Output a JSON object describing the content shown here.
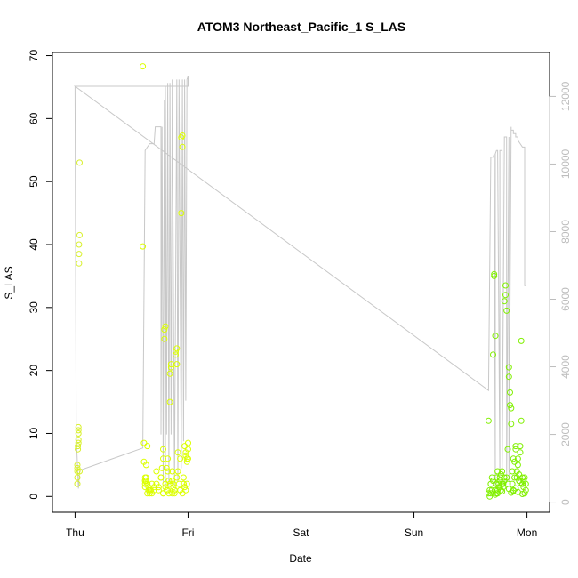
{
  "chart_data": {
    "type": "scatter",
    "title": "ATOM3 Northeast_Pacific_1 S_LAS",
    "xlabel": "Date",
    "ylabel": "S_LAS",
    "x_ticks": [
      {
        "label": "Thu",
        "value": 0
      },
      {
        "label": "Fri",
        "value": 1
      },
      {
        "label": "Sat",
        "value": 2
      },
      {
        "label": "Sun",
        "value": 3
      },
      {
        "label": "Mon",
        "value": 4
      }
    ],
    "xlim": [
      -0.2,
      4.2
    ],
    "ylim": [
      -2.5,
      70.5
    ],
    "y_ticks": [
      0,
      10,
      20,
      30,
      40,
      50,
      60,
      70
    ],
    "y2_ticks": [
      0,
      2000,
      4000,
      6000,
      8000,
      10000,
      12000
    ],
    "y2lim": [
      -300,
      13300
    ],
    "grid": false,
    "colors": {
      "thu_points": "#d8f02a",
      "fri_points": "#dcff00",
      "mon_points": "#80f000",
      "altitude_line": "#c8c8c8",
      "axis": "#000000",
      "right_axis": "#bdbdbd"
    },
    "series": [
      {
        "values_x": [
          0.02,
          0.02,
          0.02,
          0.02,
          0.02,
          0.025,
          0.025,
          0.03,
          0.03,
          0.03,
          0.03,
          0.03,
          0.035,
          0.035,
          0.035,
          0.04,
          0.04,
          0.04
        ],
        "values_y": [
          2,
          3,
          4,
          4.5,
          5,
          7.5,
          8,
          8.5,
          9,
          10,
          10.5,
          11,
          37,
          38.5,
          40,
          41.5,
          53,
          4
        ]
      },
      {
        "values_x": [
          0.6,
          0.6,
          0.61,
          0.61,
          0.62,
          0.62,
          0.62,
          0.63,
          0.63,
          0.63,
          0.64,
          0.64,
          0.65,
          0.65,
          0.66,
          0.67,
          0.68,
          0.7,
          0.72,
          0.74,
          0.76,
          0.77,
          0.78,
          0.78,
          0.78,
          0.79,
          0.79,
          0.8,
          0.8,
          0.81,
          0.81,
          0.82,
          0.82,
          0.83,
          0.83,
          0.84,
          0.84,
          0.85,
          0.85,
          0.86,
          0.86,
          0.87,
          0.87,
          0.88,
          0.88,
          0.89,
          0.89,
          0.9,
          0.9,
          0.91,
          0.91,
          0.92,
          0.93,
          0.93,
          0.94,
          0.94,
          0.95,
          0.95,
          0.96,
          0.96,
          0.97,
          0.97,
          0.98,
          0.98,
          0.99,
          0.99,
          1.0,
          1.0,
          1.0,
          0.99,
          0.98,
          0.97,
          0.96,
          0.95,
          0.93,
          0.9,
          0.88,
          0.86,
          0.84,
          0.82,
          0.8,
          0.78,
          0.76,
          0.74,
          0.72,
          0.7,
          0.68,
          0.66,
          0.64,
          0.62,
          0.62
        ],
        "values_y": [
          68.3,
          39.7,
          8.5,
          5.5,
          2.5,
          3,
          2,
          5,
          2.5,
          3,
          8,
          2,
          1.5,
          1,
          0.5,
          1,
          0.5,
          1.5,
          2,
          1,
          3,
          4.5,
          0.5,
          7.5,
          6,
          25,
          26.5,
          27,
          2,
          4.5,
          1,
          4,
          6,
          0.5,
          2.5,
          15,
          19.5,
          20.5,
          21,
          4,
          2.5,
          1.5,
          2,
          1,
          0.5,
          23,
          22.5,
          21,
          23.5,
          7,
          4,
          2,
          1,
          6,
          45,
          57,
          57.3,
          55.5,
          3,
          2,
          1.5,
          8,
          7,
          6.5,
          6,
          5.5,
          8.5,
          7.5,
          6,
          2,
          1,
          1.5,
          2,
          0.5,
          1,
          3,
          1,
          0.5,
          2,
          1,
          1.5,
          0.5,
          3,
          1.5,
          4,
          1,
          2,
          1,
          0.5,
          1.5,
          2.5
        ]
      },
      {
        "values_x": [
          3.66,
          3.66,
          3.67,
          3.67,
          3.68,
          3.68,
          3.69,
          3.69,
          3.7,
          3.7,
          3.71,
          3.71,
          3.72,
          3.72,
          3.73,
          3.73,
          3.74,
          3.74,
          3.75,
          3.75,
          3.76,
          3.76,
          3.77,
          3.77,
          3.78,
          3.78,
          3.79,
          3.79,
          3.8,
          3.8,
          3.81,
          3.81,
          3.82,
          3.82,
          3.83,
          3.83,
          3.84,
          3.84,
          3.85,
          3.85,
          3.86,
          3.86,
          3.87,
          3.87,
          3.88,
          3.88,
          3.89,
          3.89,
          3.9,
          3.9,
          3.91,
          3.91,
          3.92,
          3.92,
          3.93,
          3.93,
          3.94,
          3.94,
          3.95,
          3.95,
          3.96,
          3.96,
          3.97,
          3.97,
          3.98,
          3.98,
          3.99,
          3.99,
          3.72,
          3.73,
          3.74,
          3.76,
          3.78,
          3.8,
          3.84,
          3.86,
          3.88,
          3.9,
          3.92,
          3.94,
          3.96
        ],
        "values_y": [
          12,
          0.5,
          1,
          0,
          2,
          0.5,
          1,
          3,
          2.5,
          22.5,
          35.3,
          35,
          25.5,
          1,
          2,
          3,
          4,
          0.5,
          1.5,
          2,
          2.5,
          3,
          1,
          3.5,
          2,
          4,
          2,
          1.5,
          3,
          31,
          33.5,
          32,
          29.5,
          3,
          2,
          7.5,
          20.5,
          19,
          16.5,
          14.5,
          14,
          11.5,
          4,
          2,
          1,
          6,
          5.5,
          3,
          8,
          7.5,
          3,
          4,
          5,
          6,
          2.5,
          3.5,
          7,
          8,
          12,
          24.7,
          2,
          3,
          1.5,
          2.5,
          3,
          0.5,
          1,
          2,
          0.3,
          0.5,
          1,
          1.5,
          0.8,
          2.5,
          1.2,
          0.6,
          0.9,
          1.3,
          0.7,
          2.2,
          0.4
        ]
      },
      {
        "line": true,
        "values_x": [
          0.0,
          0.0,
          0.01,
          0.03,
          0.04,
          0.05,
          0.6,
          0.62,
          0.64,
          0.66,
          0.68,
          0.7,
          0.71,
          0.72,
          0.74,
          0.76,
          0.76,
          0.77,
          0.78,
          0.79,
          0.8,
          0.8,
          0.81,
          0.82,
          0.83,
          0.84,
          0.85,
          0.86,
          0.88,
          0.9,
          0.91,
          0.92,
          0.94,
          0.95,
          0.96,
          0.97,
          0.98,
          0.99,
          1.0,
          1.0,
          1.0,
          0.99,
          0.98,
          0.96,
          0.9,
          0.8,
          0.6,
          0.4,
          0.2,
          0.05,
          0.0,
          0.0,
          3.66,
          3.68,
          3.68,
          3.7,
          3.71,
          3.72,
          3.72,
          3.73,
          3.74,
          3.76,
          3.76,
          3.78,
          3.78,
          3.8,
          3.8,
          3.82,
          3.82,
          3.84,
          3.84,
          3.86,
          3.86,
          3.88,
          3.88,
          3.9,
          3.9,
          3.92,
          3.92,
          3.94,
          3.96,
          3.98,
          3.98,
          3.99
        ],
        "values_y": [
          12300,
          12200,
          2000,
          400,
          900,
          950,
          1600,
          10400,
          10500,
          10600,
          10600,
          10600,
          11100,
          11100,
          11100,
          11100,
          2000,
          11100,
          600,
          11900,
          400,
          12300,
          2000,
          12400,
          500,
          12400,
          2000,
          12500,
          500,
          12500,
          600,
          12500,
          1000,
          12500,
          1800,
          12500,
          3000,
          12500,
          12600,
          12400,
          12300,
          12300,
          12300,
          12300,
          12300,
          12300,
          12300,
          12300,
          12300,
          12300,
          12300,
          12300,
          3300,
          10200,
          10200,
          10200,
          10300,
          500,
          10300,
          10400,
          10400,
          800,
          10400,
          10400,
          500,
          10700,
          10800,
          10800,
          600,
          10800,
          600,
          11100,
          11000,
          11000,
          10900,
          10900,
          10800,
          10800,
          10700,
          10600,
          10500,
          10500,
          6400,
          6400
        ]
      }
    ]
  }
}
